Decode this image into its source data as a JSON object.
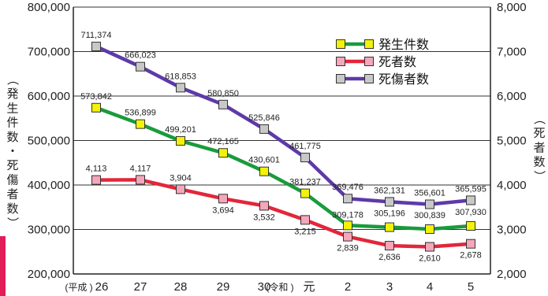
{
  "chart_data": {
    "type": "line",
    "categories": [
      "26",
      "27",
      "28",
      "29",
      "30",
      "元",
      "2",
      "3",
      "4",
      "5"
    ],
    "era_prefix_1": "(平成 )",
    "era_prefix_2": "(令和 )",
    "ylabel_left": "（発生件数・死傷者数）",
    "ylabel_right": "（死者数）",
    "ylim_left": [
      200000,
      800000
    ],
    "ylim_right": [
      2000,
      8000
    ],
    "yticks_left": [
      "200,000",
      "300,000",
      "400,000",
      "500,000",
      "600,000",
      "700,000",
      "800,000"
    ],
    "yticks_right": [
      "2,000",
      "3,000",
      "4,000",
      "5,000",
      "6,000",
      "7,000",
      "8,000"
    ],
    "series": [
      {
        "name": "発生件数",
        "axis": "left",
        "line_color": "#1a9b3c",
        "marker_color": "#f2f20a",
        "values": [
          573842,
          536899,
          499201,
          472165,
          430601,
          381237,
          309178,
          305196,
          300839,
          307930
        ],
        "labels": [
          "573,842",
          "536,899",
          "499,201",
          "472,165",
          "430,601",
          "381,237",
          "309,178",
          "305,196",
          "300,839",
          "307,930"
        ]
      },
      {
        "name": "死者数",
        "axis": "right",
        "line_color": "#e3263a",
        "marker_color": "#f4a6bb",
        "values": [
          4113,
          4117,
          3904,
          3694,
          3532,
          3215,
          2839,
          2636,
          2610,
          2678
        ],
        "labels": [
          "4,113",
          "4,117",
          "3,904",
          "3,694",
          "3,532",
          "3,215",
          "2,839",
          "2,636",
          "2,610",
          "2,678"
        ]
      },
      {
        "name": "死傷者数",
        "axis": "left",
        "line_color": "#5e3aa8",
        "marker_color": "#c8c8c8",
        "values": [
          711374,
          666023,
          618853,
          580850,
          525846,
          461775,
          369476,
          362131,
          356601,
          365595
        ],
        "labels": [
          "711,374",
          "666,023",
          "618,853",
          "580,850",
          "525,846",
          "461,775",
          "369,476",
          "362,131",
          "356,601",
          "365,595"
        ]
      }
    ],
    "grid": true,
    "legend_position": "top-right"
  }
}
